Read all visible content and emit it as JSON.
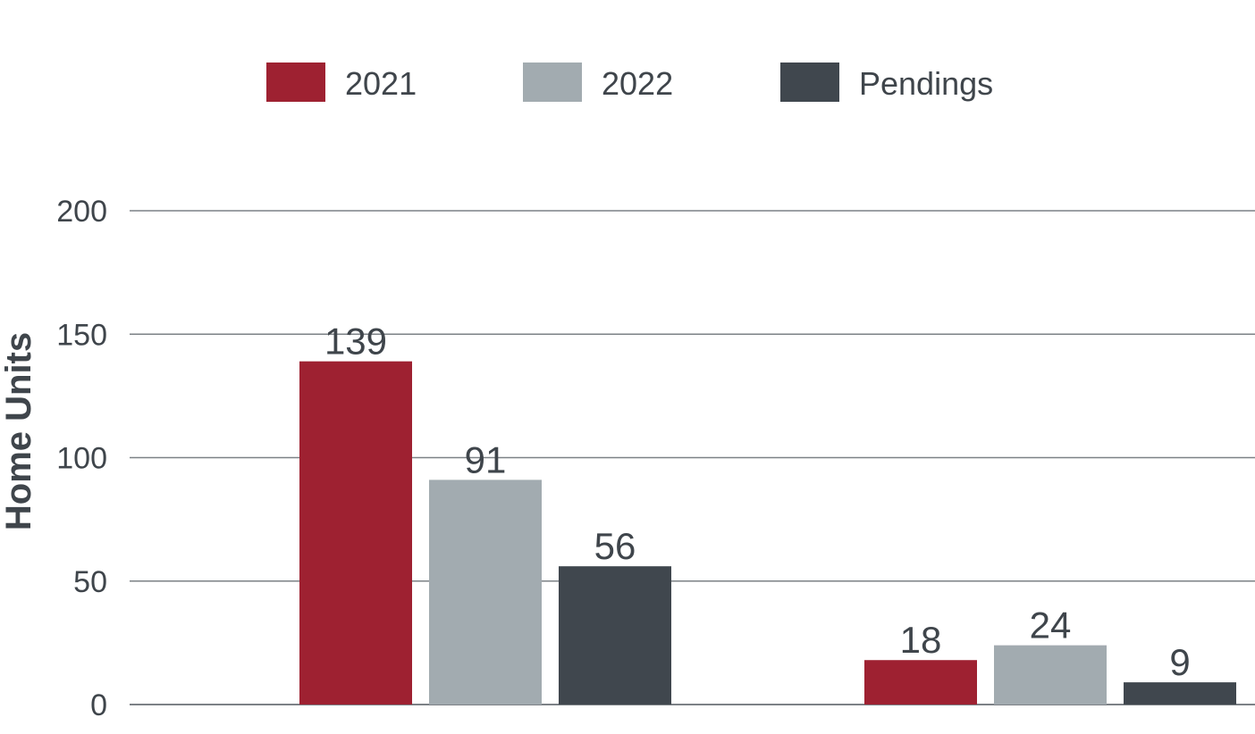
{
  "chart_data": {
    "type": "bar",
    "categories": [
      "",
      ""
    ],
    "series": [
      {
        "name": "2021",
        "values": [
          139,
          18
        ],
        "color": "#9e2131"
      },
      {
        "name": "2022",
        "values": [
          91,
          24
        ],
        "color": "#a2abb0"
      },
      {
        "name": "Pendings",
        "values": [
          56,
          9
        ],
        "color": "#40474e"
      }
    ],
    "title": "",
    "xlabel": "",
    "ylabel": "Home Units",
    "ylim": [
      0,
      200
    ],
    "yticks": [
      0,
      50,
      100,
      150,
      200
    ],
    "ytick_labels": [
      "0",
      "50",
      "100",
      "150",
      "200"
    ],
    "grid": true,
    "legend_position": "top"
  }
}
